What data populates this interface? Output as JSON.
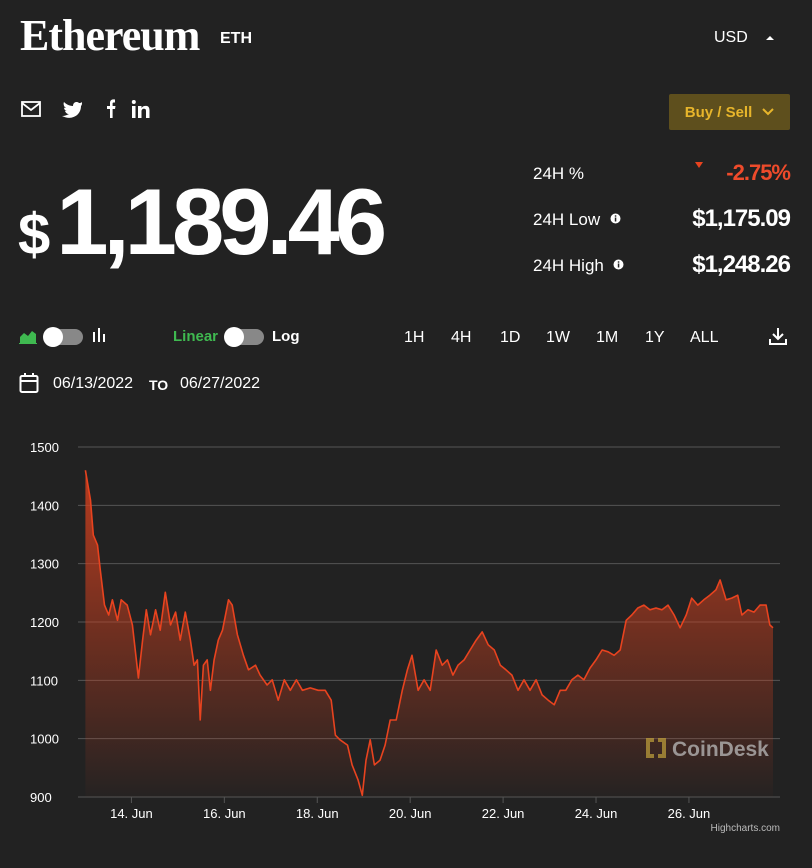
{
  "header": {
    "title": "Ethereum",
    "symbol": "ETH",
    "currency": "USD",
    "buy_sell": "Buy / Sell"
  },
  "price_symbol": "$",
  "price": "1,189.46",
  "stats": [
    {
      "label": "24H %",
      "value": "-2.75%"
    },
    {
      "label": "24H Low",
      "value": "$1,175.09"
    },
    {
      "label": "24H High",
      "value": "$1,248.26"
    }
  ],
  "controls": {
    "linear": "Linear",
    "log": "Log",
    "ranges": [
      "1H",
      "4H",
      "1D",
      "1W",
      "1M",
      "1Y",
      "ALL"
    ],
    "date_from": "06/13/2022",
    "date_to_word": "TO",
    "date_to": "06/27/2022"
  },
  "chart_data": {
    "type": "area",
    "watermark": "CoinDesk",
    "credits": "Highcharts.com",
    "color": "#e8431f",
    "xlim": [
      12.85,
      27.96
    ],
    "xticks": [
      {
        "value": 14,
        "label": "14. Jun"
      },
      {
        "value": 16,
        "label": "16. Jun"
      },
      {
        "value": 18,
        "label": "18. Jun"
      },
      {
        "value": 20,
        "label": "20. Jun"
      },
      {
        "value": 22,
        "label": "22. Jun"
      },
      {
        "value": 24,
        "label": "24. Jun"
      },
      {
        "value": 26,
        "label": "26. Jun"
      }
    ],
    "ylim": [
      900,
      1500
    ],
    "yticks": [
      900,
      1000,
      1100,
      1200,
      1300,
      1400,
      1500
    ],
    "grid": true,
    "x": [
      13.01,
      13.12,
      13.18,
      13.27,
      13.33,
      13.42,
      13.51,
      13.59,
      13.7,
      13.78,
      13.91,
      14.02,
      14.15,
      14.24,
      14.32,
      14.41,
      14.52,
      14.62,
      14.73,
      14.84,
      14.95,
      15.05,
      15.16,
      15.27,
      15.35,
      15.42,
      15.48,
      15.55,
      15.63,
      15.7,
      15.78,
      15.87,
      15.96,
      16.09,
      16.17,
      16.28,
      16.41,
      16.52,
      16.67,
      16.77,
      16.92,
      17.03,
      17.16,
      17.29,
      17.42,
      17.55,
      17.68,
      17.85,
      18.02,
      18.17,
      18.3,
      18.39,
      18.49,
      18.65,
      18.75,
      18.88,
      18.97,
      19.05,
      19.14,
      19.23,
      19.35,
      19.46,
      19.57,
      19.7,
      19.83,
      19.94,
      20.04,
      20.17,
      20.3,
      20.43,
      20.56,
      20.69,
      20.8,
      20.92,
      21.03,
      21.16,
      21.29,
      21.42,
      21.55,
      21.68,
      21.81,
      21.94,
      22.06,
      22.19,
      22.32,
      22.45,
      22.58,
      22.71,
      22.84,
      22.97,
      23.1,
      23.23,
      23.35,
      23.48,
      23.61,
      23.74,
      23.87,
      24.0,
      24.13,
      24.26,
      24.39,
      24.52,
      24.65,
      24.77,
      24.9,
      25.03,
      25.16,
      25.29,
      25.42,
      25.55,
      25.68,
      25.81,
      25.94,
      26.06,
      26.19,
      26.32,
      26.45,
      26.58,
      26.67,
      26.8,
      26.92,
      27.05,
      27.14,
      27.27,
      27.4,
      27.53,
      27.66,
      27.74,
      27.81
    ],
    "values": [
      1460,
      1409,
      1349,
      1332,
      1289,
      1229,
      1212,
      1238,
      1203,
      1238,
      1229,
      1195,
      1104,
      1169,
      1221,
      1178,
      1221,
      1186,
      1251,
      1195,
      1217,
      1169,
      1217,
      1169,
      1126,
      1135,
      1032,
      1126,
      1135,
      1083,
      1135,
      1169,
      1186,
      1238,
      1229,
      1178,
      1143,
      1118,
      1126,
      1109,
      1092,
      1101,
      1066,
      1101,
      1083,
      1101,
      1083,
      1087,
      1083,
      1083,
      1066,
      1006,
      998,
      989,
      955,
      929,
      903,
      963,
      998,
      955,
      963,
      989,
      1032,
      1032,
      1083,
      1118,
      1143,
      1083,
      1101,
      1083,
      1152,
      1126,
      1135,
      1109,
      1126,
      1135,
      1152,
      1169,
      1183,
      1161,
      1152,
      1126,
      1118,
      1109,
      1083,
      1101,
      1083,
      1101,
      1075,
      1066,
      1058,
      1083,
      1083,
      1101,
      1109,
      1101,
      1121,
      1135,
      1152,
      1149,
      1143,
      1152,
      1203,
      1212,
      1224,
      1229,
      1221,
      1224,
      1221,
      1229,
      1212,
      1190,
      1212,
      1241,
      1229,
      1238,
      1246,
      1255,
      1272,
      1238,
      1241,
      1246,
      1212,
      1221,
      1217,
      1229,
      1229,
      1195,
      1190
    ]
  }
}
